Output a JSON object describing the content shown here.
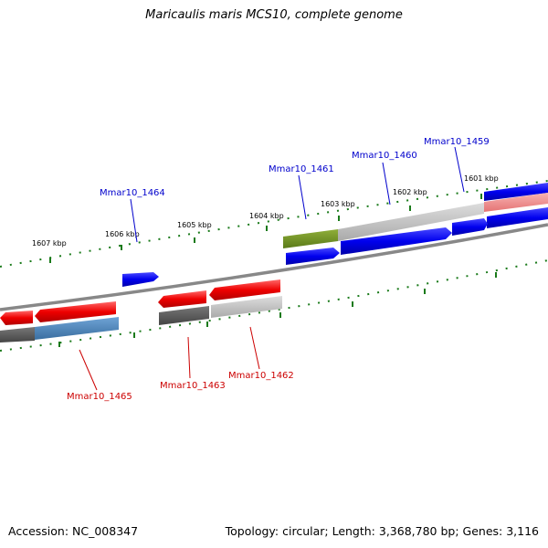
{
  "title": "Maricaulis maris MCS10, complete genome",
  "footer": {
    "accession": "Accession: NC_008347",
    "summary": "Topology: circular; Length: 3,368,780 bp; Genes: 3,116"
  },
  "scale_labels": [
    "1601 kbp",
    "1602 kbp",
    "1603 kbp",
    "1604 kbp",
    "1605 kbp",
    "1606 kbp",
    "1607 kbp"
  ],
  "genes_forward": [
    "Mmar10_1459",
    "Mmar10_1460",
    "Mmar10_1461",
    "Mmar10_1464"
  ],
  "genes_reverse": [
    "Mmar10_1462",
    "Mmar10_1463",
    "Mmar10_1465"
  ],
  "colors": {
    "forward_cds": "#0000ee",
    "reverse_cds": "#ee0000",
    "forward_label": "#0000cc",
    "reverse_label": "#cc0000",
    "backbone": "#888888",
    "tick": "#1a7a1a",
    "olive_gene": "#6b8e23",
    "steel_gene": "#4682b4",
    "grey_gene": "#555555",
    "light_grey_gene": "#c0c0c0"
  }
}
